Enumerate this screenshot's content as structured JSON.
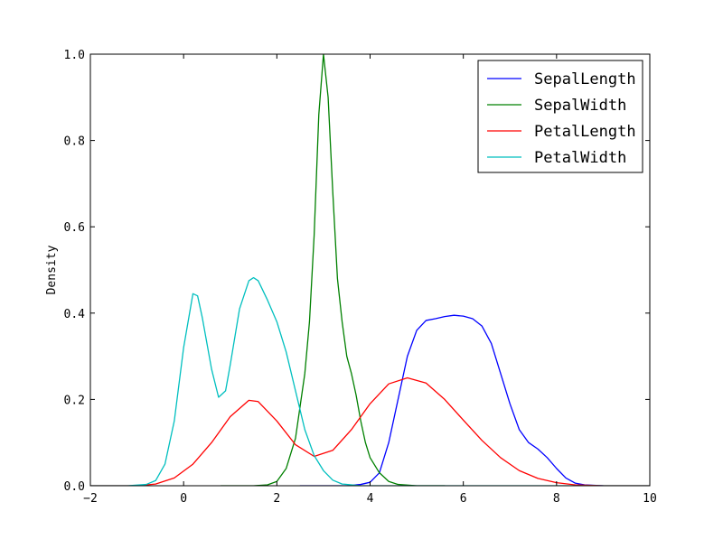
{
  "chart_data": {
    "type": "line",
    "title": "",
    "xlabel": "",
    "ylabel": "Density",
    "xlim": [
      -2,
      10
    ],
    "ylim": [
      0,
      1.0
    ],
    "x_ticks": [
      -2,
      0,
      2,
      4,
      6,
      8,
      10
    ],
    "x_tick_labels": [
      "−2",
      "0",
      "2",
      "4",
      "6",
      "8",
      "10"
    ],
    "y_ticks": [
      0,
      0.2,
      0.4,
      0.6,
      0.8,
      1.0
    ],
    "y_tick_labels": [
      "0.0",
      "0.2",
      "0.4",
      "0.6",
      "0.8",
      "1.0"
    ],
    "grid": false,
    "legend_position": "top-right",
    "series": [
      {
        "name": "SepalLength",
        "color": "#0000ff",
        "points": [
          [
            2.5,
            0.0
          ],
          [
            3.5,
            0.0
          ],
          [
            3.8,
            0.003
          ],
          [
            4.0,
            0.008
          ],
          [
            4.2,
            0.03
          ],
          [
            4.4,
            0.1
          ],
          [
            4.6,
            0.2
          ],
          [
            4.8,
            0.3
          ],
          [
            5.0,
            0.36
          ],
          [
            5.2,
            0.383
          ],
          [
            5.4,
            0.387
          ],
          [
            5.6,
            0.392
          ],
          [
            5.8,
            0.395
          ],
          [
            6.0,
            0.393
          ],
          [
            6.2,
            0.387
          ],
          [
            6.4,
            0.37
          ],
          [
            6.6,
            0.33
          ],
          [
            6.8,
            0.26
          ],
          [
            7.0,
            0.19
          ],
          [
            7.2,
            0.13
          ],
          [
            7.4,
            0.1
          ],
          [
            7.6,
            0.085
          ],
          [
            7.8,
            0.065
          ],
          [
            8.0,
            0.04
          ],
          [
            8.2,
            0.018
          ],
          [
            8.4,
            0.006
          ],
          [
            8.6,
            0.002
          ],
          [
            9.0,
            0.0
          ]
        ]
      },
      {
        "name": "SepalWidth",
        "color": "#008000",
        "points": [
          [
            0.8,
            0.0
          ],
          [
            1.5,
            0.0
          ],
          [
            1.8,
            0.002
          ],
          [
            2.0,
            0.01
          ],
          [
            2.2,
            0.04
          ],
          [
            2.4,
            0.11
          ],
          [
            2.6,
            0.26
          ],
          [
            2.7,
            0.38
          ],
          [
            2.8,
            0.58
          ],
          [
            2.9,
            0.86
          ],
          [
            3.0,
            1.0
          ],
          [
            3.1,
            0.9
          ],
          [
            3.2,
            0.68
          ],
          [
            3.3,
            0.48
          ],
          [
            3.4,
            0.38
          ],
          [
            3.5,
            0.3
          ],
          [
            3.6,
            0.26
          ],
          [
            3.7,
            0.21
          ],
          [
            3.8,
            0.15
          ],
          [
            3.9,
            0.1
          ],
          [
            4.0,
            0.065
          ],
          [
            4.2,
            0.03
          ],
          [
            4.4,
            0.01
          ],
          [
            4.6,
            0.003
          ],
          [
            5.0,
            0.0
          ],
          [
            5.6,
            0.0
          ]
        ]
      },
      {
        "name": "PetalLength",
        "color": "#ff0000",
        "points": [
          [
            -2.0,
            0.0
          ],
          [
            -1.0,
            0.0
          ],
          [
            -0.6,
            0.004
          ],
          [
            -0.2,
            0.018
          ],
          [
            0.2,
            0.05
          ],
          [
            0.6,
            0.1
          ],
          [
            1.0,
            0.16
          ],
          [
            1.4,
            0.198
          ],
          [
            1.6,
            0.195
          ],
          [
            2.0,
            0.15
          ],
          [
            2.4,
            0.095
          ],
          [
            2.8,
            0.068
          ],
          [
            3.2,
            0.082
          ],
          [
            3.6,
            0.13
          ],
          [
            4.0,
            0.19
          ],
          [
            4.4,
            0.236
          ],
          [
            4.8,
            0.25
          ],
          [
            5.2,
            0.238
          ],
          [
            5.6,
            0.2
          ],
          [
            6.0,
            0.152
          ],
          [
            6.4,
            0.105
          ],
          [
            6.8,
            0.065
          ],
          [
            7.2,
            0.035
          ],
          [
            7.6,
            0.017
          ],
          [
            8.0,
            0.007
          ],
          [
            8.4,
            0.002
          ],
          [
            9.0,
            0.0
          ],
          [
            10.0,
            0.0
          ]
        ]
      },
      {
        "name": "PetalWidth",
        "color": "#00bfbf",
        "points": [
          [
            -2.0,
            0.0
          ],
          [
            -1.2,
            0.0
          ],
          [
            -0.8,
            0.003
          ],
          [
            -0.6,
            0.012
          ],
          [
            -0.4,
            0.05
          ],
          [
            -0.2,
            0.15
          ],
          [
            0.0,
            0.32
          ],
          [
            0.2,
            0.445
          ],
          [
            0.3,
            0.44
          ],
          [
            0.4,
            0.39
          ],
          [
            0.6,
            0.27
          ],
          [
            0.75,
            0.205
          ],
          [
            0.9,
            0.22
          ],
          [
            1.0,
            0.28
          ],
          [
            1.2,
            0.41
          ],
          [
            1.4,
            0.475
          ],
          [
            1.5,
            0.482
          ],
          [
            1.6,
            0.475
          ],
          [
            1.8,
            0.43
          ],
          [
            2.0,
            0.38
          ],
          [
            2.2,
            0.31
          ],
          [
            2.4,
            0.22
          ],
          [
            2.6,
            0.13
          ],
          [
            2.8,
            0.07
          ],
          [
            3.0,
            0.035
          ],
          [
            3.2,
            0.013
          ],
          [
            3.4,
            0.004
          ],
          [
            3.8,
            0.0
          ],
          [
            10.0,
            0.0
          ]
        ]
      }
    ]
  }
}
